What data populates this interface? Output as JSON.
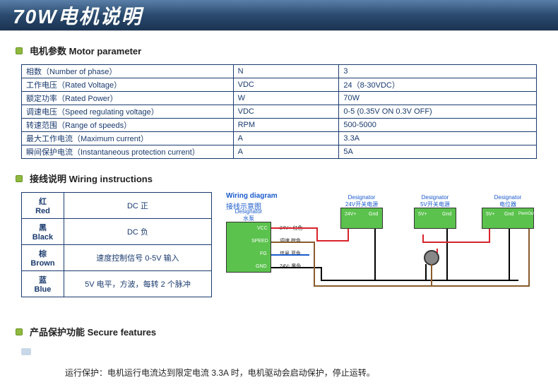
{
  "title": "70W电机说明",
  "sections": {
    "motor_param_header": "电机参数  Motor parameter",
    "wiring_header": "接线说明  Wiring instructions",
    "secure_header": "产品保护功能  Secure features"
  },
  "param_table": {
    "rows": [
      {
        "label": "相数（Number of phase）",
        "unit": "N",
        "value": "3"
      },
      {
        "label": "工作电压（Rated Voltage）",
        "unit": "VDC",
        "value": "24（8-30VDC）"
      },
      {
        "label": "额定功率（Rated Power）",
        "unit": "W",
        "value": "70W"
      },
      {
        "label": "调速电压（Speed regulating voltage）",
        "unit": "VDC",
        "value": "0-5      (0.35V ON      0.3V OFF)"
      },
      {
        "label": "转速范围（Range of speeds）",
        "unit": "RPM",
        "value": "500-5000"
      },
      {
        "label": "最大工作电流（Maximum current）",
        "unit": "A",
        "value": "3.3A"
      },
      {
        "label": "瞬间保护电流（Instantaneous protection current）",
        "unit": "A",
        "value": "5A"
      }
    ]
  },
  "wire_table": {
    "rows": [
      {
        "color_cn": "红",
        "color_en": "Red",
        "desc": "DC 正"
      },
      {
        "color_cn": "黑",
        "color_en": "Black",
        "desc": "DC 负"
      },
      {
        "color_cn": "棕",
        "color_en": "Brown",
        "desc": "速度控制信号 0-5V 输入"
      },
      {
        "color_cn": "蓝",
        "color_en": "Blue",
        "desc": "5V 电平，方波，每转 2 个脉冲"
      }
    ]
  },
  "diagram": {
    "title_en": "Wiring diagram",
    "title_cn": "接线示意图",
    "main_label_en": "Designator",
    "main_label_cn": "水泵",
    "main_pins": [
      {
        "name": "VCC",
        "wire": "24V+ 红色",
        "color": "#d8232a"
      },
      {
        "name": "SPEED",
        "wire": "调速  棕色",
        "color": "#8a5a2b"
      },
      {
        "name": "FG",
        "wire": "信号  蓝色",
        "color": "#1a5acb"
      },
      {
        "name": "GND",
        "wire": "24V- 黑色",
        "color": "#000000"
      }
    ],
    "psu": {
      "label_en": "Designator",
      "label_cn": "24V开关电源",
      "pins": [
        "24V+",
        "Gnd"
      ]
    },
    "switch": {
      "label_en": "Designator",
      "label_cn": "5V开关电源",
      "pins": [
        "5V+",
        "Gnd"
      ]
    },
    "pot": {
      "label_en": "Designator",
      "label_cn": "电位器",
      "pins": [
        "5V+",
        "Gnd",
        "PwmOut"
      ]
    },
    "colors": {
      "main_chip": "#5bc24d",
      "sub_chip": "#5bc24d",
      "wire_red": "#d8232a",
      "wire_black": "#000000",
      "wire_brown": "#8a5a2b",
      "wire_blue": "#1a5acb",
      "label_blue": "#1a5acb"
    }
  },
  "secure_feature_text": "运行保护：电机运行电流达到限定电流 3.3A 时，电机驱动会启动保护，停止运转。"
}
